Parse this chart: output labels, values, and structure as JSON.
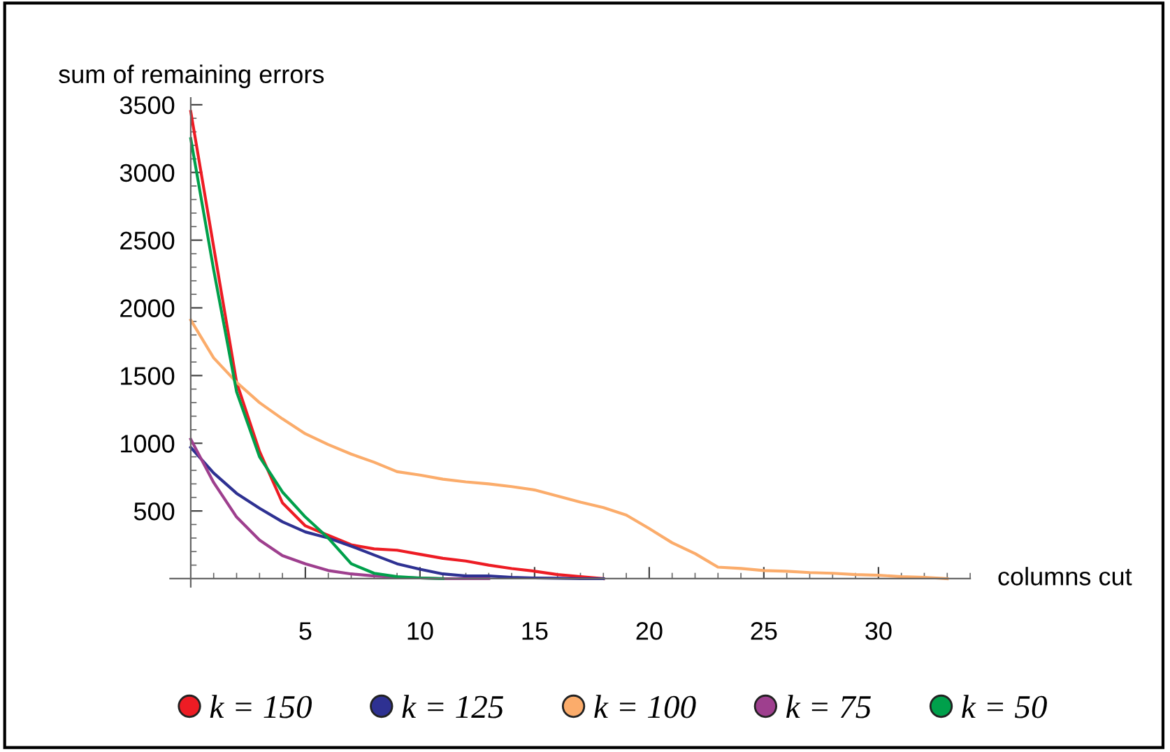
{
  "chart_data": {
    "type": "line",
    "xlabel": "columns cut",
    "ylabel": "sum of remaining errors",
    "series": [
      {
        "name": "k = 150",
        "color": "#ed1c24",
        "x": [
          0,
          1,
          2,
          3,
          4,
          5,
          6,
          7,
          8,
          9,
          10,
          11,
          12,
          13,
          14,
          15,
          16,
          17,
          18
        ],
        "values": [
          3450,
          2450,
          1450,
          940,
          560,
          390,
          320,
          250,
          220,
          210,
          180,
          150,
          130,
          100,
          75,
          55,
          30,
          15,
          0
        ]
      },
      {
        "name": "k = 125",
        "color": "#2e3192",
        "x": [
          0,
          1,
          2,
          3,
          4,
          5,
          6,
          7,
          8,
          9,
          10,
          11,
          12,
          13,
          14,
          15,
          16,
          17,
          18
        ],
        "values": [
          970,
          780,
          630,
          520,
          420,
          345,
          300,
          240,
          175,
          110,
          70,
          35,
          20,
          20,
          10,
          5,
          3,
          0,
          0
        ]
      },
      {
        "name": "k = 100",
        "color": "#fbac6b",
        "x": [
          0,
          1,
          2,
          3,
          4,
          5,
          6,
          7,
          8,
          9,
          10,
          11,
          12,
          13,
          14,
          15,
          16,
          17,
          18,
          19,
          20,
          21,
          22,
          23,
          24,
          25,
          26,
          27,
          28,
          29,
          30,
          31,
          32,
          33
        ],
        "values": [
          1910,
          1630,
          1450,
          1300,
          1180,
          1070,
          990,
          920,
          860,
          790,
          765,
          735,
          715,
          700,
          680,
          655,
          610,
          565,
          525,
          470,
          370,
          265,
          185,
          85,
          75,
          60,
          55,
          45,
          40,
          30,
          25,
          15,
          10,
          0
        ]
      },
      {
        "name": "k = 75",
        "color": "#9e3f8e",
        "x": [
          0,
          1,
          2,
          3,
          4,
          5,
          6,
          7,
          8,
          9,
          10,
          11,
          12,
          13
        ],
        "values": [
          1030,
          710,
          455,
          285,
          170,
          110,
          60,
          35,
          20,
          10,
          5,
          0,
          0,
          0
        ]
      },
      {
        "name": "k = 50",
        "color": "#00a04b",
        "x": [
          0,
          1,
          2,
          3,
          4,
          5,
          6,
          7,
          8,
          9,
          10,
          11
        ],
        "values": [
          3250,
          2280,
          1380,
          900,
          640,
          455,
          300,
          110,
          40,
          15,
          5,
          0
        ]
      }
    ],
    "xlim": [
      -0.9,
      34
    ],
    "ylim": [
      -60,
      3550
    ],
    "xticks": [
      5,
      10,
      15,
      20,
      25,
      30
    ],
    "yticks": [
      500,
      1000,
      1500,
      2000,
      2500,
      3000,
      3500
    ],
    "grid": false,
    "legend": "bottom",
    "marker": "none",
    "line_style": "solid"
  }
}
